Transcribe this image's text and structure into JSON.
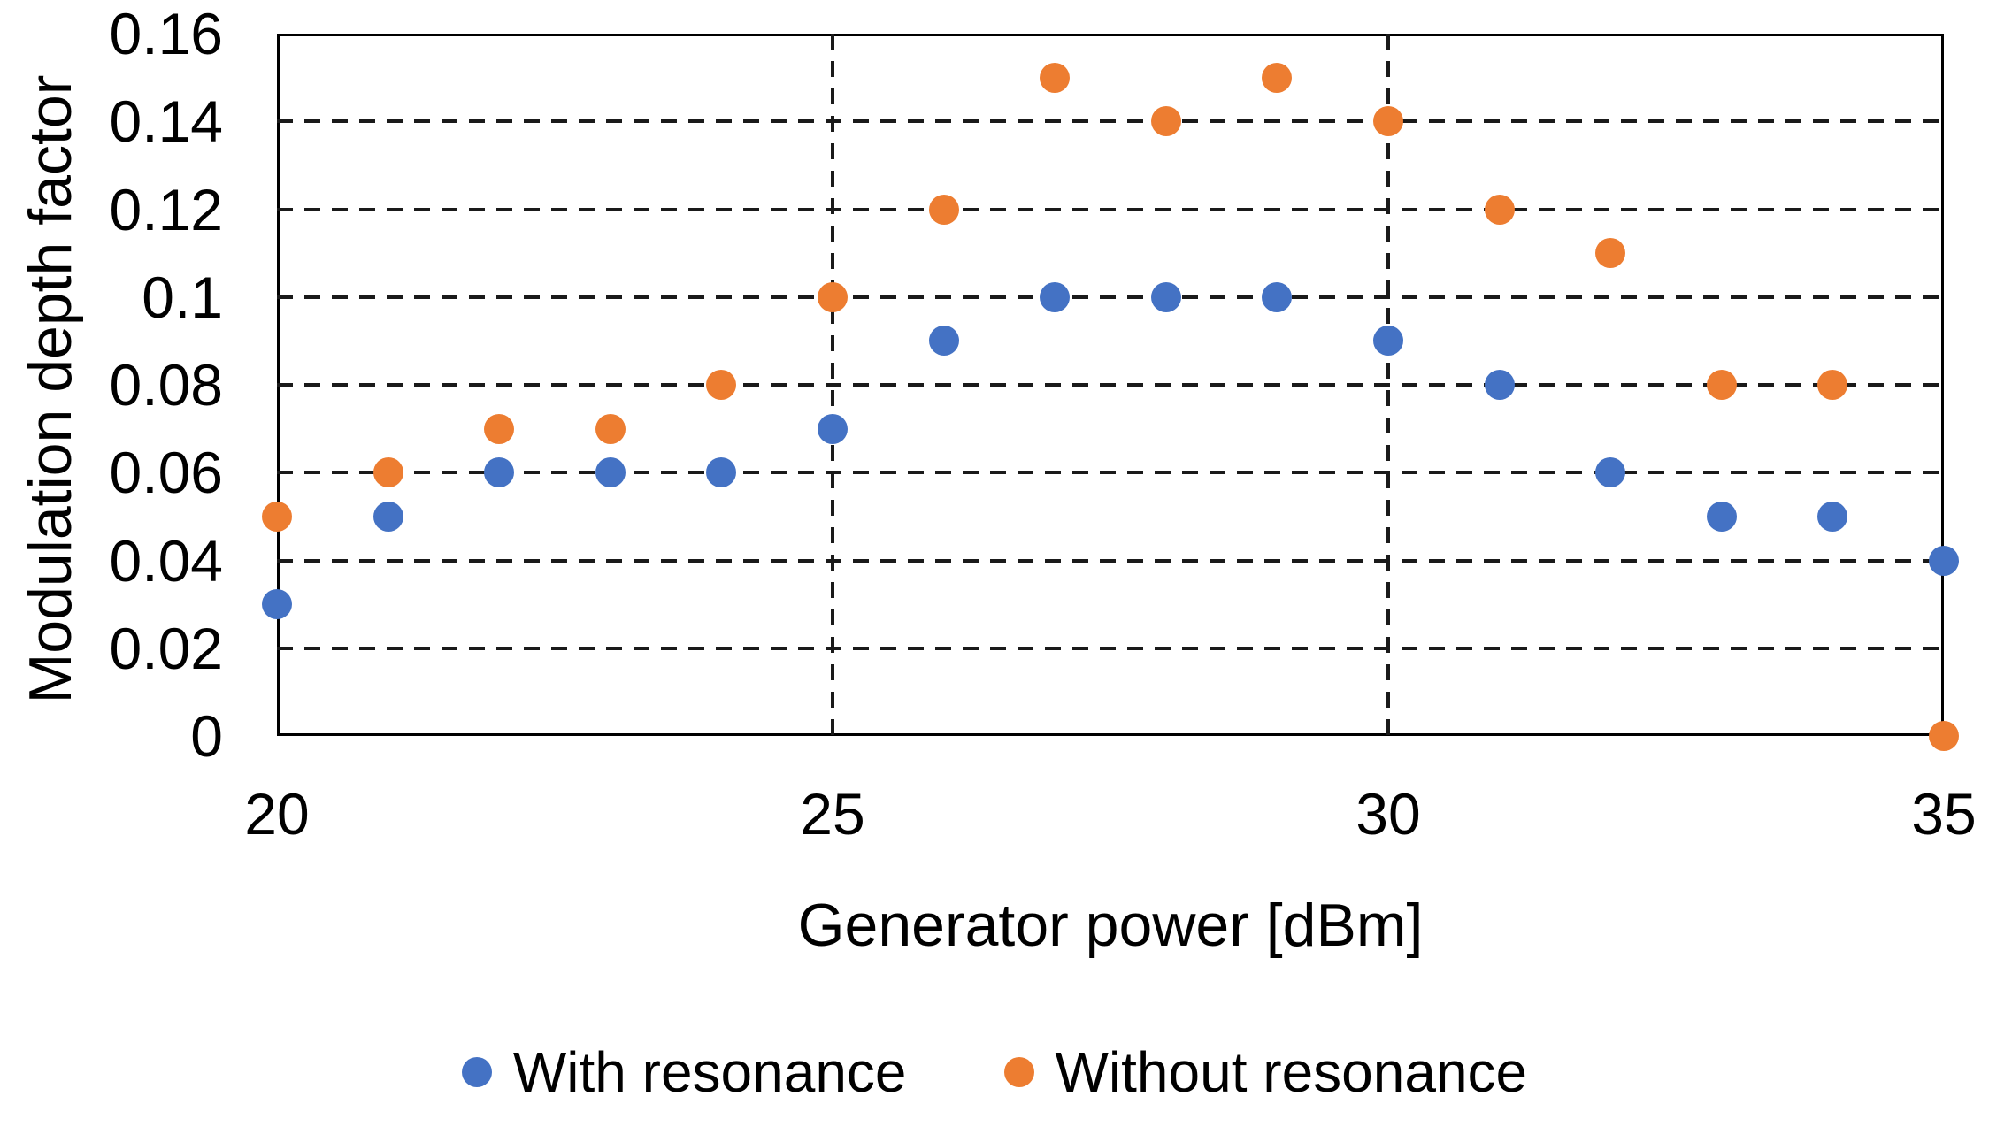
{
  "figure": {
    "background": "#ffffff",
    "axis_color": "#000000",
    "text_color": "#000000"
  },
  "chart_data": {
    "type": "scatter",
    "title": "",
    "xlabel": "Generator power [dBm]",
    "ylabel": "Modulation depth factor",
    "xlim": [
      20,
      35
    ],
    "ylim": [
      0,
      0.16
    ],
    "grid": "dashed",
    "legend_position": "bottom",
    "marker_shape": "circle",
    "x": [
      20,
      21,
      22,
      23,
      24,
      25,
      26,
      27,
      28,
      29,
      30,
      31,
      32,
      33,
      34,
      35
    ],
    "series": [
      {
        "name": "With resonance",
        "color": "#4472C4",
        "values": [
          0.03,
          0.05,
          0.06,
          0.06,
          0.06,
          0.07,
          0.09,
          0.1,
          0.1,
          0.1,
          0.09,
          0.08,
          0.06,
          0.05,
          0.05,
          0.04
        ]
      },
      {
        "name": "Without resonance",
        "color": "#ED7D31",
        "values": [
          0.05,
          0.06,
          0.07,
          0.07,
          0.08,
          0.1,
          0.12,
          0.15,
          0.14,
          0.15,
          0.14,
          0.12,
          0.11,
          0.08,
          0.08,
          0.0
        ]
      }
    ],
    "x_ticks": [
      {
        "value": 20,
        "label": "20"
      },
      {
        "value": 25,
        "label": "25"
      },
      {
        "value": 30,
        "label": "30"
      },
      {
        "value": 35,
        "label": "35"
      }
    ],
    "y_ticks": [
      {
        "value": 0.16,
        "label": "0.16"
      },
      {
        "value": 0.14,
        "label": "0.14"
      },
      {
        "value": 0.12,
        "label": "0.12"
      },
      {
        "value": 0.1,
        "label": "0.1"
      },
      {
        "value": 0.08,
        "label": "0.08"
      },
      {
        "value": 0.06,
        "label": "0.06"
      },
      {
        "value": 0.04,
        "label": "0.04"
      },
      {
        "value": 0.02,
        "label": "0.02"
      },
      {
        "value": 0,
        "label": "0"
      }
    ],
    "h_gridlines": [
      0.02,
      0.04,
      0.06,
      0.08,
      0.1,
      0.12,
      0.14
    ],
    "v_gridlines": [
      25,
      30
    ]
  }
}
